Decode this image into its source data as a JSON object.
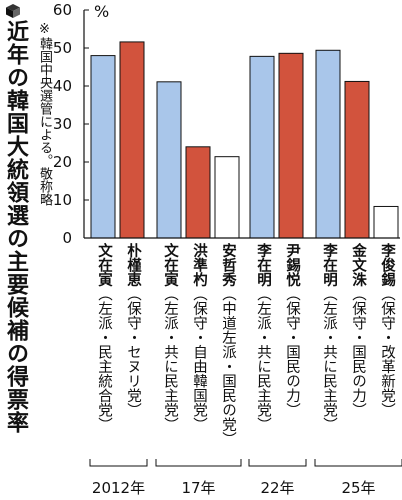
{
  "title": "近年の韓国大統領選の主要候補の得票率",
  "note": "※韓国中央選管による。敬称略",
  "colors": {
    "progressive": "#a9c6ea",
    "conservative": "#d2533d",
    "other": "#ffffff"
  },
  "chart_data": {
    "type": "bar",
    "ylabel": "%",
    "ylim": [
      0,
      60
    ],
    "yticks": [
      "0",
      "10",
      "20",
      "30",
      "40",
      "50",
      "60"
    ],
    "grid": false,
    "groups": [
      {
        "label": "2012年",
        "candidates": [
          {
            "name": "文在寅",
            "party": "（左派・民主統合党）",
            "value": 48,
            "camp": "progressive"
          },
          {
            "name": "朴槿恵",
            "party": "（保守・セヌリ党）",
            "value": 51.6,
            "camp": "conservative"
          }
        ]
      },
      {
        "label": "17年",
        "candidates": [
          {
            "name": "文在寅",
            "party": "（左派・共に民主党）",
            "value": 41.1,
            "camp": "progressive"
          },
          {
            "name": "洪準杓",
            "party": "（保守・自由韓国党）",
            "value": 24.0,
            "camp": "conservative"
          },
          {
            "name": "安哲秀",
            "party": "（中道左派・国民の党）",
            "value": 21.4,
            "camp": "other"
          }
        ]
      },
      {
        "label": "22年",
        "candidates": [
          {
            "name": "李在明",
            "party": "（左派・共に民主党）",
            "value": 47.8,
            "camp": "progressive"
          },
          {
            "name": "尹錫悦",
            "party": "（保守・国民の力）",
            "value": 48.6,
            "camp": "conservative"
          }
        ]
      },
      {
        "label": "25年",
        "candidates": [
          {
            "name": "李在明",
            "party": "（左派・共に民主党）",
            "value": 49.4,
            "camp": "progressive"
          },
          {
            "name": "金文洙",
            "party": "（保守・国民の力）",
            "value": 41.2,
            "camp": "conservative"
          },
          {
            "name": "李俊錫",
            "party": "（保守・改革新党）",
            "value": 8.3,
            "camp": "other"
          }
        ]
      }
    ]
  }
}
